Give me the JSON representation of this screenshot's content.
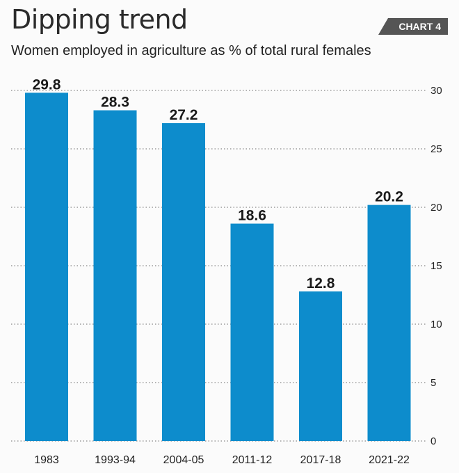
{
  "header": {
    "title": "Dipping trend",
    "badge": "CHART 4"
  },
  "chart_data": {
    "type": "bar",
    "title": "Dipping trend",
    "subtitle": "Women employed in agriculture as % of total rural females",
    "categories": [
      "1983",
      "1993-94",
      "2004-05",
      "2011-12",
      "2017-18",
      "2021-22"
    ],
    "values": [
      29.8,
      28.3,
      27.2,
      18.6,
      12.8,
      20.2
    ],
    "data_labels": [
      "29.8",
      "28.3",
      "27.2",
      "18.6",
      "12.8",
      "20.2"
    ],
    "ylim": [
      0,
      30
    ],
    "yticks": [
      "0",
      "5",
      "10",
      "15",
      "20",
      "25",
      "30"
    ],
    "ytick_values": [
      0,
      5,
      10,
      15,
      20,
      25,
      30
    ],
    "y_axis_side": "right",
    "grid": "dotted-horizontal",
    "bar_color": "#0d8ccc",
    "grid_color": "#888888"
  }
}
